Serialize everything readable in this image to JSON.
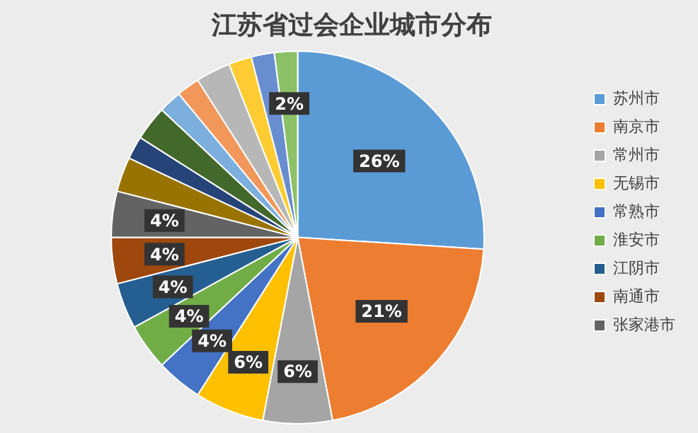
{
  "chart_data": {
    "type": "pie",
    "title": "江苏省过会企业城市分布",
    "categories": [
      "苏州市",
      "南京市",
      "常州市",
      "无锡市",
      "常熟市",
      "淮安市",
      "江阴市",
      "南通市",
      "张家港市",
      null,
      null,
      null,
      null,
      null,
      null,
      null,
      null,
      null
    ],
    "values": [
      26,
      21,
      6,
      6,
      4,
      4,
      4,
      4,
      4,
      3,
      2,
      3,
      2,
      2,
      3,
      2,
      2,
      2
    ],
    "colors": [
      "#5b9bd5",
      "#ed7d31",
      "#a5a5a5",
      "#ffc000",
      "#4472c4",
      "#70ad47",
      "#255e91",
      "#9e480e",
      "#636363",
      "#997300",
      "#264478",
      "#43682b",
      "#7cafdd",
      "#f1975a",
      "#b7b7b7",
      "#ffcd33",
      "#698ed0",
      "#8cc168"
    ],
    "value_labels": [
      "26%",
      "21%",
      "6%",
      "6%",
      "4%",
      "4%",
      "4%",
      "4%",
      "4%",
      null,
      null,
      null,
      null,
      null,
      null,
      null,
      null,
      "2%"
    ],
    "legend": "right"
  }
}
